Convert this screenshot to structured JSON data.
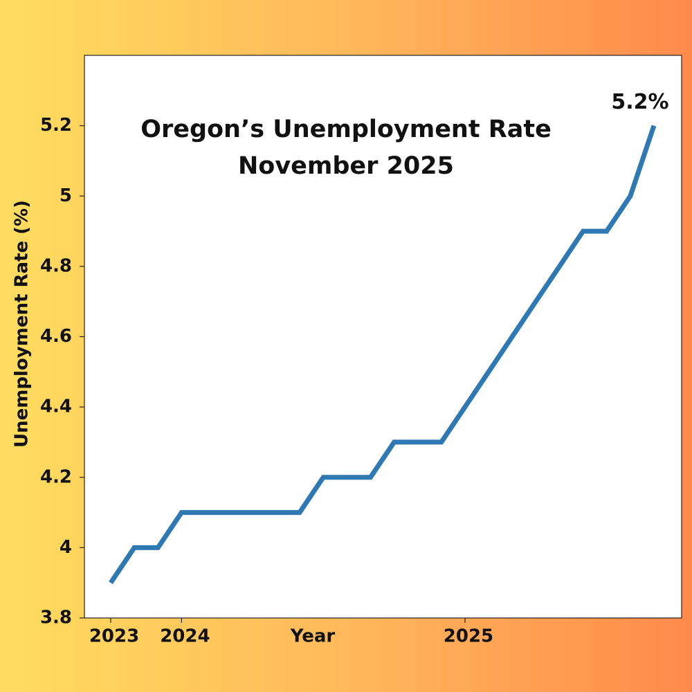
{
  "chart_data": {
    "type": "line",
    "title": "Oregon’s Unemployment Rate",
    "subtitle": "November 2025",
    "x_label": "Year",
    "y_label": "Unemployment Rate (%)",
    "annotation": "5.2%",
    "categories": [
      "2023",
      null,
      null,
      "2024",
      null,
      null,
      null,
      null,
      null,
      null,
      null,
      null,
      null,
      null,
      null,
      "2025",
      null,
      null,
      null,
      null,
      null,
      null,
      null,
      null
    ],
    "values": [
      3.9,
      4.0,
      4.0,
      4.1,
      4.1,
      4.1,
      4.1,
      4.1,
      4.1,
      4.2,
      4.2,
      4.2,
      4.3,
      4.3,
      4.3,
      4.4,
      4.5,
      4.6,
      4.7,
      4.8,
      4.9,
      4.9,
      5.0,
      5.2
    ],
    "color": "#2e78b4",
    "ylim": [
      3.8,
      5.4
    ],
    "yticks": [
      3.8,
      4.0,
      4.2,
      4.4,
      4.6,
      4.8,
      5.0,
      5.2
    ],
    "grid": false
  }
}
